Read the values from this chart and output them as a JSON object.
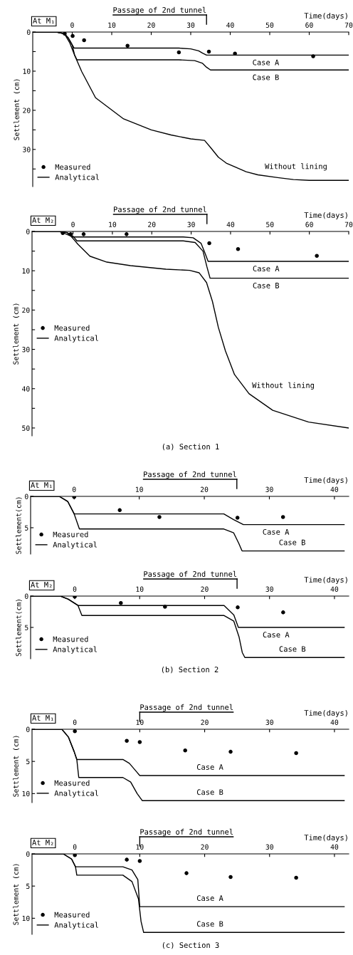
{
  "chart_data": [
    {
      "type": "line",
      "title": "At M₁",
      "xlabel": "Time(days)",
      "ylabel": "Settlement (cm)",
      "xlim": [
        -10,
        70
      ],
      "ylim": [
        39.5,
        0
      ],
      "xticks": [
        0,
        10,
        20,
        30,
        40,
        50,
        60,
        70
      ],
      "yticks": [
        0,
        {
          "value": 5,
          "label": null
        },
        10,
        {
          "value": 15,
          "label": null
        },
        20,
        {
          "value": 25,
          "label": null
        },
        30,
        {
          "value": 35,
          "label": null
        }
      ],
      "legend": "bottom left",
      "ref_lines": [
        {
          "axis": "x",
          "value": 34,
          "label": "Passage of 2nd tunnel"
        }
      ],
      "annotations": [
        {
          "text": "Case A",
          "x": 49,
          "y": 5.9
        },
        {
          "text": "Case B",
          "x": 49,
          "y": 9.7
        },
        {
          "text": "Without lining",
          "x": 48,
          "y": 36.5
        }
      ],
      "series": [
        {
          "name": "Measured",
          "type": "scatter",
          "color": "#000000",
          "x": [
            -1.9,
            0.1,
            3,
            14,
            27,
            34.6,
            41.2,
            61
          ],
          "values": [
            0.4,
            1.0,
            2.1,
            3.5,
            5.2,
            5.0,
            5.5,
            6.2
          ]
        },
        {
          "name": "Analytical",
          "color": "#000000",
          "x": [
            -10,
            -4,
            -2,
            -1,
            0,
            0.5,
            27,
            30,
            32,
            33,
            34,
            70
          ],
          "values": [
            0,
            0,
            0.4,
            1.5,
            3.3,
            4.1,
            4.1,
            4.3,
            4.8,
            5.4,
            5.9,
            5.9
          ]
        },
        {
          "name": "Analytical",
          "color": "#000000",
          "x": [
            -10,
            -4,
            -2,
            -1,
            0,
            0.6,
            1.2,
            27,
            31,
            33,
            34,
            35,
            70
          ],
          "values": [
            0,
            0,
            0.4,
            1.5,
            3.3,
            5.9,
            7.1,
            7.1,
            7.3,
            8,
            9,
            9.7,
            9.7
          ]
        },
        {
          "name": "Analytical",
          "color": "#000000",
          "x": [
            -10,
            -4,
            -2,
            -0.6,
            0.6,
            2.4,
            5.9,
            13,
            20,
            25,
            30,
            33.5,
            35,
            37,
            39,
            41,
            44,
            47,
            52,
            56,
            60,
            70
          ],
          "values": [
            0,
            0,
            0.4,
            2.8,
            5.9,
            10.1,
            16.8,
            22.2,
            25,
            26.3,
            27.3,
            27.7,
            29.5,
            32,
            33.5,
            34.4,
            35.7,
            36.5,
            37.2,
            37.7,
            37.9,
            37.9
          ]
        }
      ]
    },
    {
      "type": "line",
      "title": "At M₂",
      "xlabel": "Time(days)",
      "ylabel": "Settlement (cm)",
      "xlim": [
        -10.4,
        70
      ],
      "ylim": [
        52,
        0
      ],
      "xticks": [
        0,
        10,
        20,
        30,
        40,
        50,
        60,
        70
      ],
      "yticks": [
        0,
        {
          "value": 5,
          "label": null
        },
        10,
        {
          "value": 15,
          "label": null
        },
        20,
        {
          "value": 25,
          "label": null
        },
        30,
        {
          "value": 35,
          "label": null
        },
        40,
        {
          "value": 45,
          "label": null
        },
        50
      ],
      "legend": "left",
      "ref_lines": [
        {
          "axis": "x",
          "value": 34,
          "label": "Passage of 2nd tunnel"
        }
      ],
      "annotations": [
        {
          "text": "Case A",
          "x": 49,
          "y": 7.6
        },
        {
          "text": "Case B",
          "x": 49,
          "y": 11.9
        },
        {
          "text": "Without lining",
          "x": 44.7,
          "y": 41.3
        },
        "(a) Section 1"
      ],
      "series": [
        {
          "name": "Measured",
          "type": "scatter",
          "color": "#000000",
          "x": [
            -2.6,
            -0.6,
            2.7,
            13.6,
            34.6,
            41.9,
            61.9
          ],
          "values": [
            0.4,
            0.7,
            0.7,
            0.7,
            3,
            4.5,
            6.2
          ]
        },
        {
          "name": "Analytical",
          "color": "#000000",
          "x": [
            -10.4,
            -3,
            -1.5,
            -0.3,
            28,
            30.5,
            32.5,
            33.5,
            34.3,
            70
          ],
          "values": [
            0,
            0,
            0.3,
            1.4,
            1.4,
            1.6,
            3,
            5.5,
            7.6,
            7.6
          ]
        },
        {
          "name": "Analytical",
          "color": "#000000",
          "x": [
            -10.4,
            -3,
            -1.5,
            0,
            1,
            28,
            31,
            33,
            34,
            34.8,
            70
          ],
          "values": [
            0,
            0,
            0.3,
            1.2,
            2.4,
            2.4,
            2.8,
            5,
            9,
            11.9,
            11.9
          ]
        },
        {
          "name": "Analytical",
          "color": "#000000",
          "x": [
            -10.4,
            -3.5,
            -2.6,
            -0.5,
            1.3,
            4.3,
            8.6,
            14.6,
            23.6,
            29.6,
            32,
            33.9,
            35.4,
            36.9,
            38.7,
            41,
            44.7,
            50.7,
            59.8,
            70
          ],
          "values": [
            0,
            0,
            0.3,
            1.2,
            3.3,
            6.3,
            7.8,
            8.7,
            9.6,
            9.9,
            10.5,
            13,
            17.8,
            24.4,
            30.4,
            36.4,
            41.3,
            45.5,
            48.5,
            50
          ]
        }
      ]
    },
    {
      "type": "line",
      "title": "At M₁",
      "xlabel": "Time(days)",
      "ylabel": "Settlement(cm)",
      "xlim": [
        -6.7,
        42.2
      ],
      "ylim": [
        9.2,
        0
      ],
      "xticks": [
        0,
        10,
        20,
        30,
        40
      ],
      "yticks": [
        0,
        5
      ],
      "legend": "bottom left",
      "ref_lines": [
        {
          "axis": "x",
          "value": 25,
          "label": "Passage of 2nd tunnel"
        }
      ],
      "annotations": [
        {
          "text": "Case A",
          "x": 31,
          "y": 4.5
        },
        {
          "text": "Case B",
          "x": 31,
          "y": 8.7
        }
      ],
      "series": [
        {
          "name": "Measured",
          "type": "scatter",
          "color": "#000000",
          "x": [
            0,
            7,
            13.1,
            25.1,
            32.1
          ],
          "values": [
            0.1,
            2.2,
            3.3,
            3.4,
            3.3
          ]
        },
        {
          "name": "Analytical",
          "color": "#000000",
          "x": [
            -6.7,
            -2.3,
            -1,
            0,
            23,
            24.5,
            26,
            41.5
          ],
          "values": [
            0,
            0,
            0.8,
            2.8,
            2.8,
            3.7,
            4.5,
            4.5
          ]
        },
        {
          "name": "Analytical",
          "color": "#000000",
          "x": [
            -6.7,
            -2.3,
            -1,
            0,
            0.8,
            23,
            24.5,
            25.3,
            25.8,
            41.5
          ],
          "values": [
            0,
            0,
            0.8,
            2.8,
            5.2,
            5.2,
            5.8,
            7.5,
            8.7,
            8.7
          ]
        }
      ]
    },
    {
      "type": "line",
      "title": "At M₂",
      "xlabel": "Time(days)",
      "ylabel": "Settlement(cm)",
      "xlim": [
        -6.8,
        42.2
      ],
      "ylim": [
        10,
        0
      ],
      "xticks": [
        0,
        10,
        20,
        30,
        40
      ],
      "yticks": [
        0,
        5
      ],
      "legend": "bottom left",
      "ref_lines": [
        {
          "axis": "x",
          "value": 25,
          "label": "Passage of 2nd tunnel"
        }
      ],
      "annotations": [
        {
          "text": "Case A",
          "x": 31,
          "y": 5
        },
        {
          "text": "Case B",
          "x": 31,
          "y": 9.8
        },
        "(b) Section 2"
      ],
      "series": [
        {
          "name": "Measured",
          "type": "scatter",
          "color": "#000000",
          "x": [
            0,
            7.1,
            13.9,
            25.1,
            32.1
          ],
          "values": [
            0.1,
            1.1,
            1.7,
            1.8,
            2.6
          ]
        },
        {
          "name": "Analytical",
          "color": "#000000",
          "x": [
            -6.8,
            -2.2,
            -1,
            0.5,
            23,
            24.5,
            25.2,
            41.5
          ],
          "values": [
            0,
            0,
            0.5,
            1.5,
            1.5,
            3,
            5,
            5
          ]
        },
        {
          "name": "Analytical",
          "color": "#000000",
          "x": [
            -6.8,
            -2.2,
            -1,
            0.5,
            1.1,
            23,
            24.5,
            25.3,
            25.8,
            26.2,
            41.5
          ],
          "values": [
            0,
            0,
            0.5,
            1.5,
            3.1,
            3.1,
            4,
            6.5,
            9,
            9.8,
            9.8
          ]
        }
      ]
    },
    {
      "type": "line",
      "title": "At M₁",
      "xlabel": "Time(days)",
      "ylabel": "Settlement (cm)",
      "xlim": [
        -6.6,
        42.2
      ],
      "ylim": [
        11.4,
        0
      ],
      "xticks": [
        0,
        10,
        20,
        30,
        40
      ],
      "yticks": [
        0,
        5,
        10
      ],
      "legend": "bottom left",
      "ref_lines": [
        {
          "axis": "x",
          "value": 10,
          "label": "Passage of 2nd tunnel"
        }
      ],
      "annotations": [
        {
          "text": "Case A",
          "x": 18.3,
          "y": 7.2
        },
        {
          "text": "Case B",
          "x": 18.3,
          "y": 11.1
        }
      ],
      "series": [
        {
          "name": "Measured",
          "type": "scatter",
          "color": "#000000",
          "x": [
            0,
            8,
            10,
            17,
            24,
            34.1
          ],
          "values": [
            0.3,
            1.8,
            2.0,
            3.3,
            3.5,
            3.7
          ]
        },
        {
          "name": "Analytical",
          "color": "#000000",
          "x": [
            -6.6,
            -2,
            -1,
            -0.1,
            0.3,
            7.4,
            8.4,
            9.5,
            10,
            41.5
          ],
          "values": [
            0,
            0,
            1.2,
            3.5,
            4.7,
            4.7,
            5.3,
            6.6,
            7.2,
            7.2
          ]
        },
        {
          "name": "Analytical",
          "color": "#000000",
          "x": [
            -6.6,
            -2,
            -1,
            -0.1,
            0.3,
            0.6,
            7.4,
            8.6,
            9.6,
            10.4,
            41.5
          ],
          "values": [
            0,
            0,
            1.2,
            3.5,
            4.7,
            7.5,
            7.5,
            8.2,
            10,
            11.1,
            11.1
          ]
        }
      ]
    },
    {
      "type": "line",
      "title": "At M₂",
      "xlabel": "Time(days)",
      "ylabel": "Settlement (cm)",
      "xlim": [
        -6.6,
        42.2
      ],
      "ylim": [
        12.5,
        0
      ],
      "xticks": [
        0,
        10,
        20,
        30,
        40
      ],
      "yticks": [
        0,
        5,
        10
      ],
      "legend": "bottom left",
      "ref_lines": [
        {
          "axis": "x",
          "value": 10,
          "label": "Passage of 2nd tunnel"
        }
      ],
      "annotations": [
        {
          "text": "Case A",
          "x": 18.3,
          "y": 8.2
        },
        {
          "text": "Case B",
          "x": 18.3,
          "y": 12.2
        },
        "(c) Section 3"
      ],
      "series": [
        {
          "name": "Measured",
          "type": "scatter",
          "color": "#000000",
          "x": [
            0,
            8,
            10,
            17.2,
            24,
            34.1
          ],
          "values": [
            0.2,
            0.9,
            1.1,
            3.0,
            3.6,
            3.7
          ]
        },
        {
          "name": "Analytical",
          "color": "#000000",
          "x": [
            -6.6,
            -1.8,
            -0.5,
            0.1,
            7.4,
            8.8,
            9.7,
            10,
            41.5
          ],
          "values": [
            0,
            0,
            0.8,
            2,
            2,
            2.5,
            4,
            8.2,
            8.2
          ]
        },
        {
          "name": "Analytical",
          "color": "#000000",
          "x": [
            -6.6,
            -1.8,
            -0.5,
            0.1,
            0.3,
            7.4,
            8.8,
            9.8,
            10.2,
            10.6,
            41.5
          ],
          "values": [
            0,
            0,
            0.8,
            2,
            3.3,
            3.3,
            4.3,
            7,
            10.5,
            12.2,
            12.2
          ]
        }
      ]
    }
  ]
}
